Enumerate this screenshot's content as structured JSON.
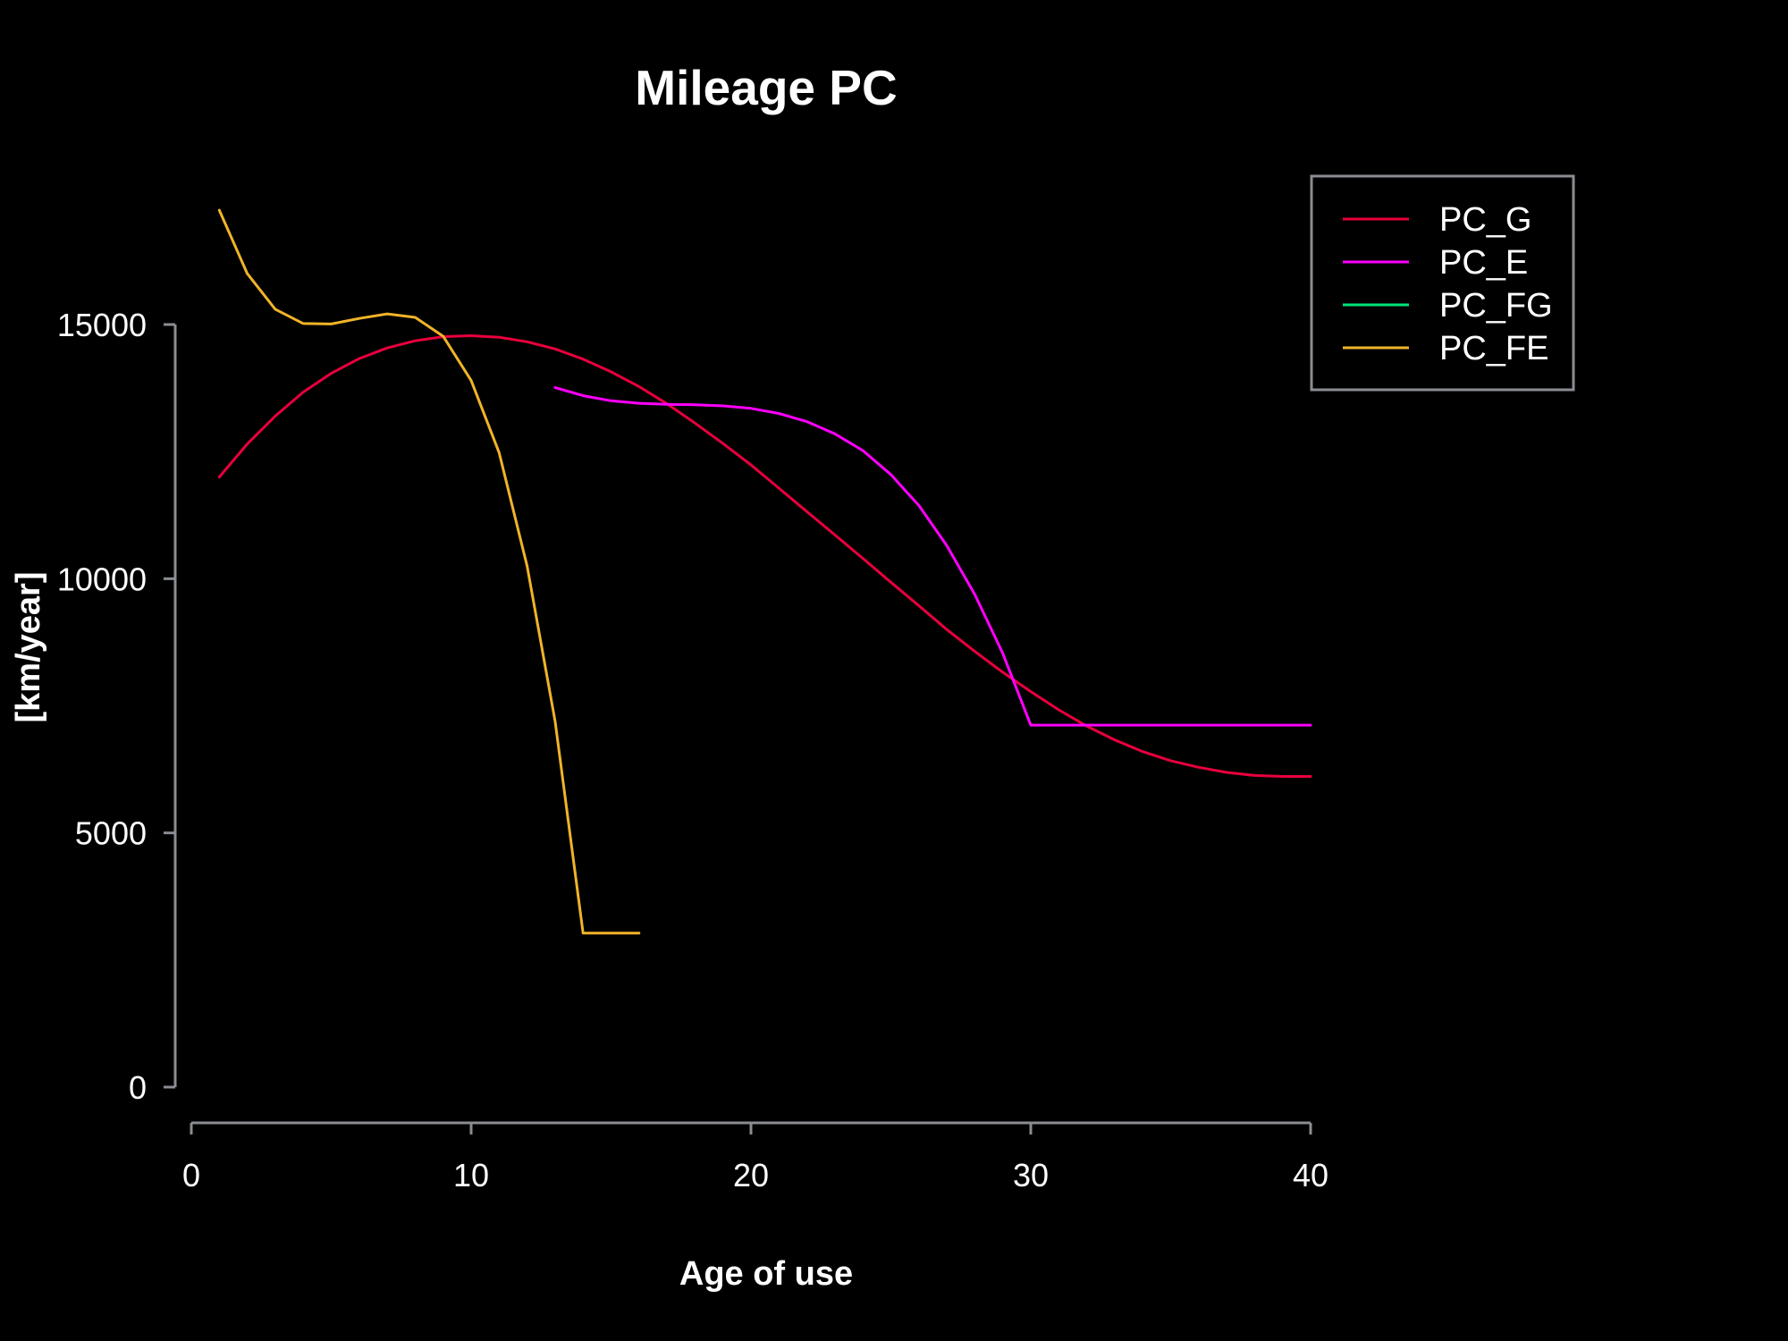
{
  "chart_data": {
    "type": "line",
    "title": "Mileage PC",
    "xlabel": "Age of use",
    "ylabel": "[km/year]",
    "xlim": [
      0,
      40
    ],
    "ylim": [
      0,
      15000
    ],
    "xticks": [
      0,
      10,
      20,
      30,
      40
    ],
    "yticks": [
      0,
      5000,
      10000,
      15000
    ],
    "grid": false,
    "legend_position": "top-right",
    "background": "#000000",
    "series": [
      {
        "name": "PC_G",
        "color": "#e8003d",
        "x": [
          1,
          2,
          3,
          4,
          5,
          6,
          7,
          8,
          9,
          10,
          11,
          12,
          13,
          14,
          15,
          16,
          17,
          18,
          19,
          20,
          21,
          22,
          23,
          24,
          25,
          26,
          27,
          28,
          29,
          30,
          31,
          32,
          33,
          34,
          35,
          36,
          37,
          38,
          39,
          40
        ],
        "y": [
          12000,
          12650,
          13200,
          13670,
          14040,
          14330,
          14540,
          14680,
          14760,
          14780,
          14750,
          14660,
          14520,
          14320,
          14070,
          13780,
          13440,
          13060,
          12660,
          12240,
          11780,
          11320,
          10860,
          10400,
          9930,
          9470,
          9000,
          8570,
          8160,
          7780,
          7420,
          7100,
          6830,
          6600,
          6420,
          6290,
          6190,
          6130,
          6110,
          6110
        ]
      },
      {
        "name": "PC_E",
        "color": "#ff00ff",
        "x": [
          13,
          14,
          15,
          16,
          17,
          18,
          19,
          20,
          21,
          22,
          23,
          24,
          25,
          26,
          27,
          28,
          29,
          30,
          31,
          32,
          33,
          34,
          35,
          36,
          37,
          38,
          39,
          40
        ],
        "y": [
          13760,
          13600,
          13500,
          13450,
          13430,
          13420,
          13400,
          13350,
          13250,
          13090,
          12850,
          12520,
          12050,
          11440,
          10650,
          9690,
          8530,
          7120,
          7120,
          7120,
          7120,
          7120,
          7120,
          7120,
          7120,
          7120,
          7120,
          7120
        ]
      },
      {
        "name": "PC_FG",
        "color": "#00e67a",
        "x": [],
        "y": []
      },
      {
        "name": "PC_FE",
        "color": "#f0b428",
        "x": [
          1,
          2,
          3,
          4,
          5,
          6,
          7,
          8,
          9,
          10,
          11,
          12,
          13,
          14,
          15,
          16
        ],
        "y": [
          17250,
          16000,
          15300,
          15020,
          15010,
          15120,
          15210,
          15140,
          14770,
          13900,
          12480,
          10250,
          7200,
          3030,
          3030,
          3030
        ]
      }
    ]
  }
}
